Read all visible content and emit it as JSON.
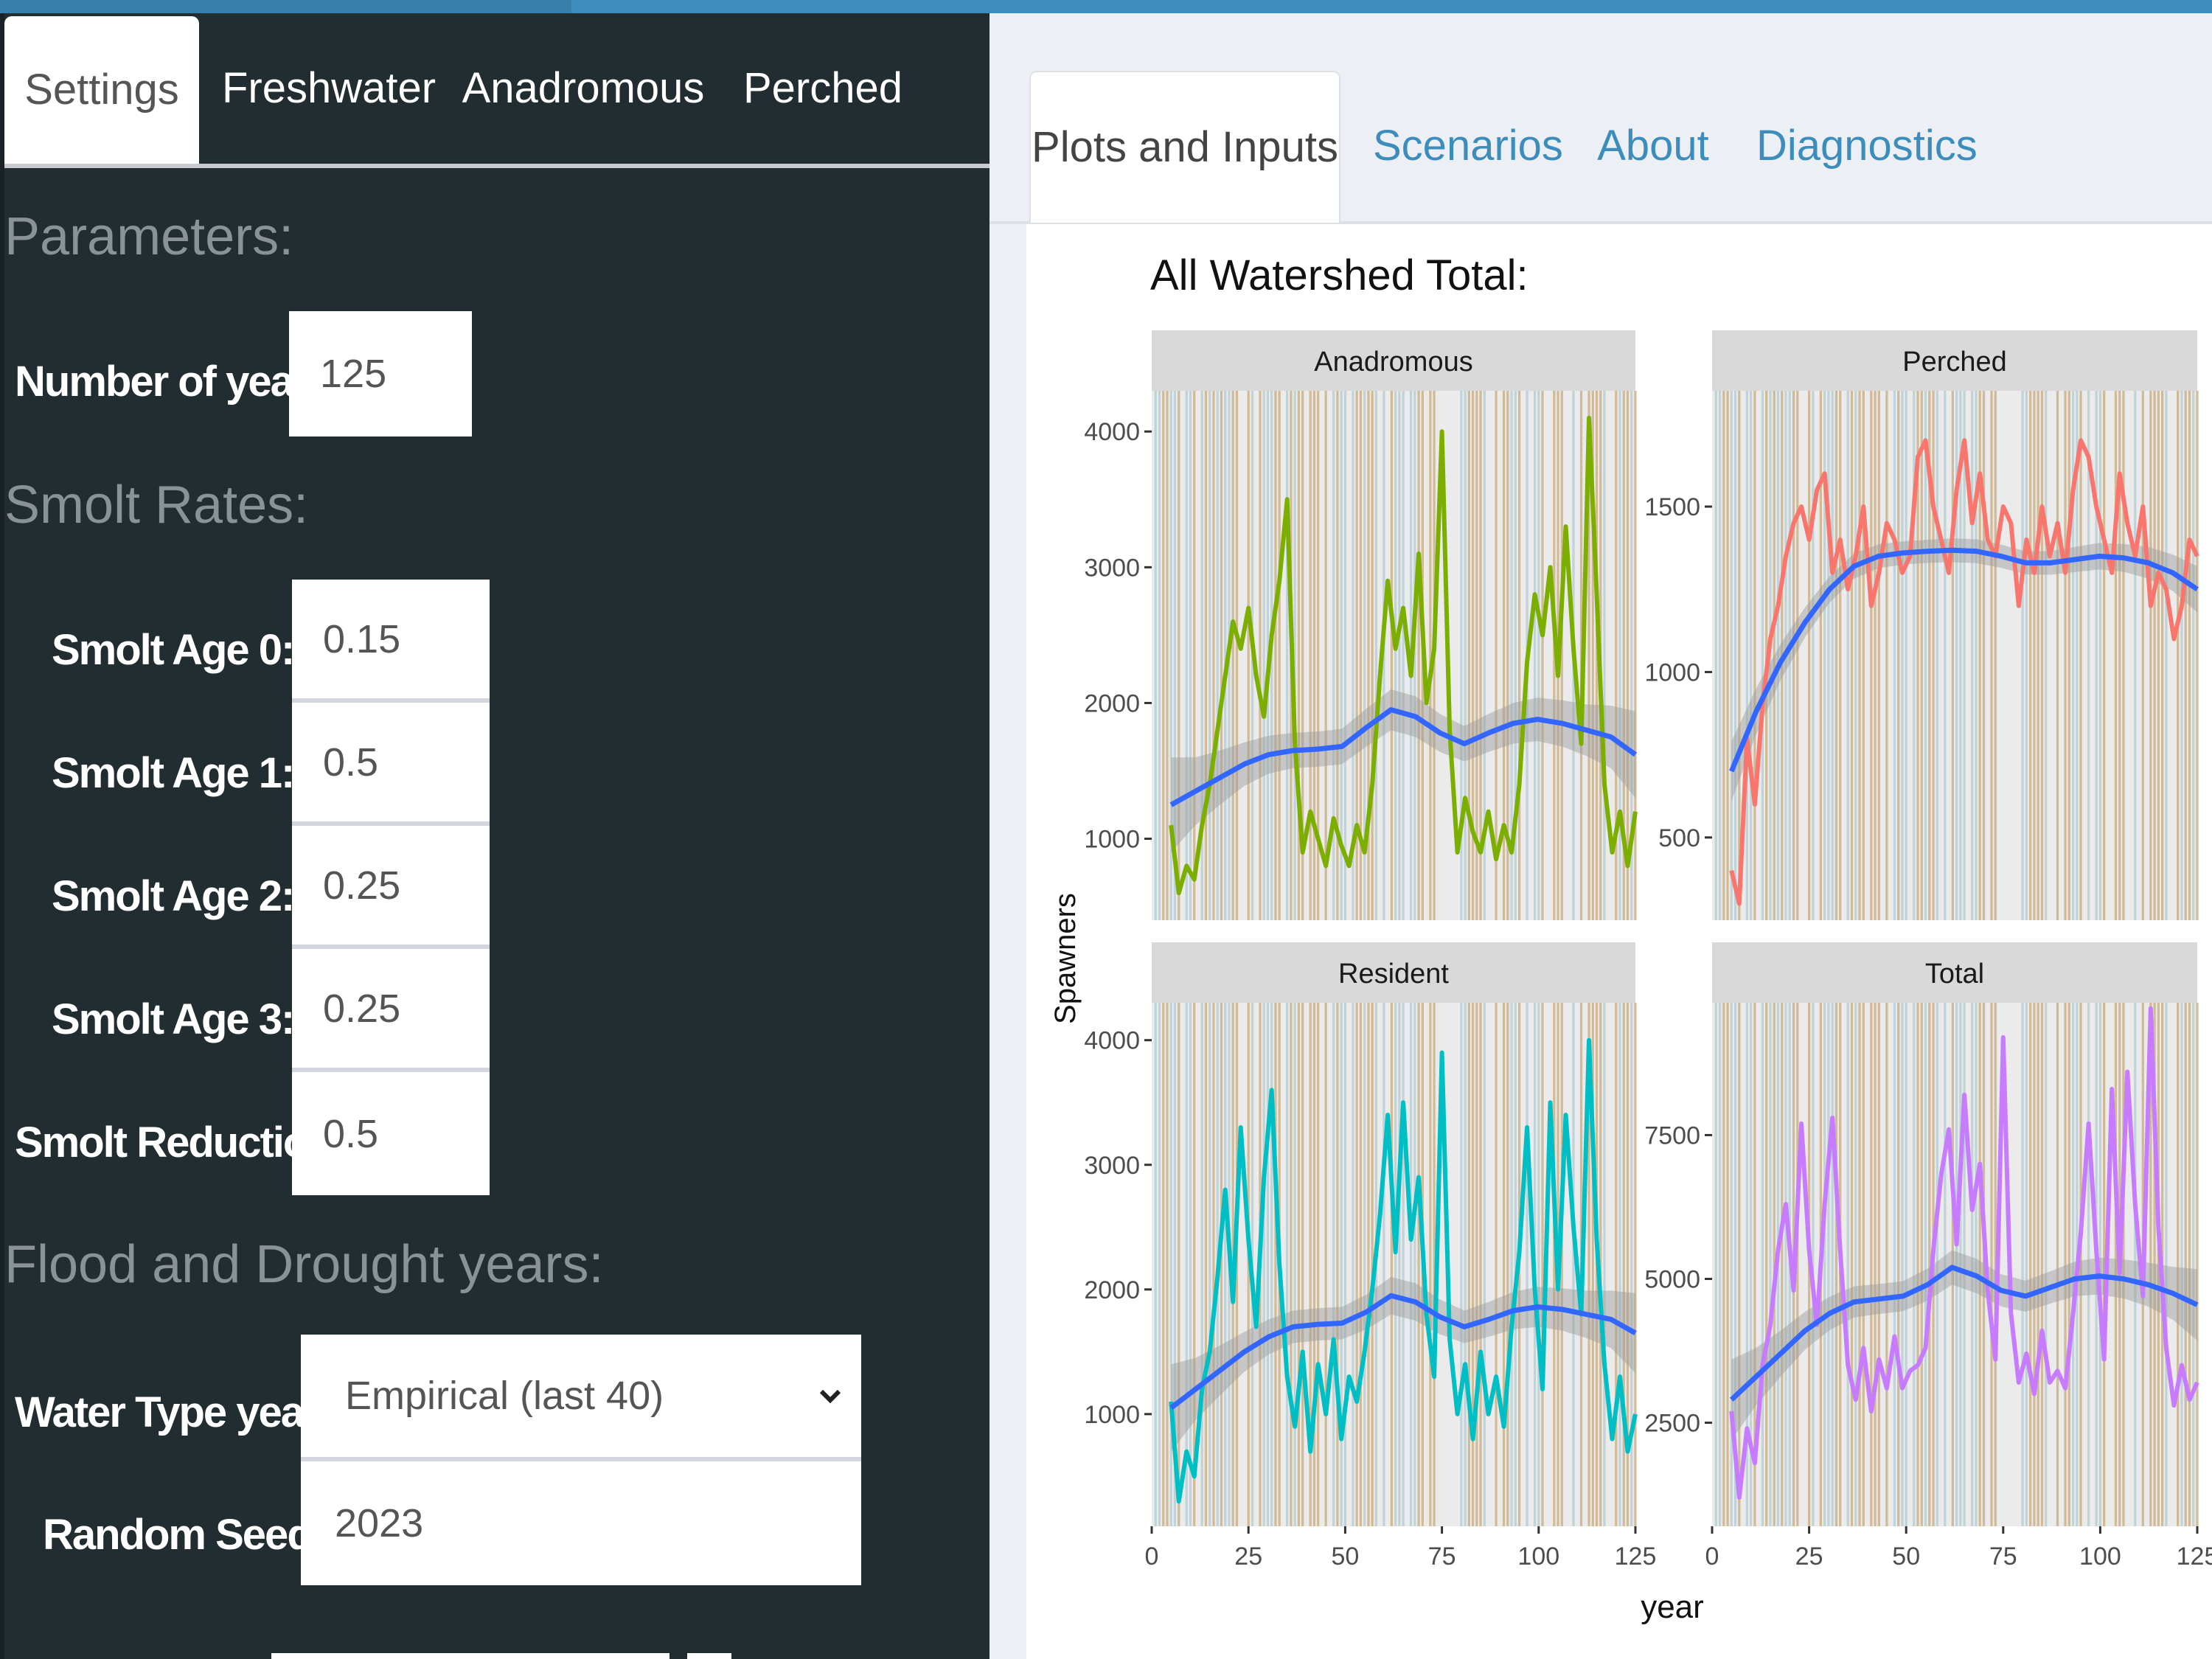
{
  "sidebar": {
    "tabs": [
      {
        "label": "Settings",
        "active": true
      },
      {
        "label": "Freshwater",
        "active": false
      },
      {
        "label": "Anadromous",
        "active": false
      },
      {
        "label": "Perched",
        "active": false
      }
    ],
    "sections": {
      "parameters": "Parameters:",
      "smolt_rates": "Smolt Rates:",
      "flood_drought": "Flood and Drought years:"
    },
    "fields": {
      "num_years": {
        "label": "Number of years:",
        "value": "125"
      },
      "smolt_age0": {
        "label": "Smolt Age 0:",
        "value": "0.15"
      },
      "smolt_age1": {
        "label": "Smolt Age 1:",
        "value": "0.5"
      },
      "smolt_age2": {
        "label": "Smolt Age 2:",
        "value": "0.25"
      },
      "smolt_age3": {
        "label": "Smolt Age 3:",
        "value": "0.25"
      },
      "smolt_reduction": {
        "label": "Smolt Reduction:",
        "value": "0.5"
      },
      "water_type": {
        "label": "Water Type years:",
        "value": "Empirical (last 40)"
      },
      "random_seed": {
        "label": "Random Seed:",
        "value": "2023"
      }
    }
  },
  "main": {
    "tabs": [
      {
        "label": "Plots and Inputs",
        "active": true
      },
      {
        "label": "Scenarios",
        "active": false
      },
      {
        "label": "About",
        "active": false
      },
      {
        "label": "Diagnostics",
        "active": false
      }
    ],
    "plot_title": "All Watershed Total:"
  },
  "chart_data": {
    "type": "line",
    "xlabel": "year",
    "ylabel": "Spawners",
    "x_ticks": [
      0,
      25,
      50,
      75,
      100,
      125
    ],
    "xlim": [
      0,
      125
    ],
    "colors": {
      "smooth": "#3366ff",
      "band": "#999999",
      "flood": "#c8a97a",
      "drought": "#a9c6cf",
      "strip": "#d9d9d9",
      "grid": "#ebebeb"
    },
    "panels": [
      {
        "title": "Anadromous",
        "color": "#7cae00",
        "ylim": [
          400,
          4300
        ],
        "y_ticks": [
          1000,
          2000,
          3000,
          4000
        ],
        "x": [
          5,
          7,
          9,
          11,
          13,
          15,
          17,
          19,
          21,
          23,
          25,
          27,
          29,
          31,
          33,
          35,
          37,
          39,
          41,
          43,
          45,
          47,
          49,
          51,
          53,
          55,
          57,
          59,
          61,
          63,
          65,
          67,
          69,
          71,
          73,
          75,
          77,
          79,
          81,
          83,
          85,
          87,
          89,
          91,
          93,
          95,
          97,
          99,
          101,
          103,
          105,
          107,
          109,
          111,
          113,
          115,
          117,
          119,
          121,
          123,
          125
        ],
        "values": [
          1100,
          600,
          800,
          700,
          1100,
          1400,
          1800,
          2200,
          2600,
          2400,
          2700,
          2200,
          1900,
          2500,
          2900,
          3500,
          1700,
          900,
          1200,
          1000,
          800,
          1150,
          950,
          800,
          1100,
          900,
          1400,
          2200,
          2900,
          2400,
          2700,
          2200,
          3100,
          2000,
          2400,
          4000,
          1800,
          900,
          1300,
          1050,
          900,
          1200,
          850,
          1100,
          900,
          1400,
          2300,
          2800,
          2500,
          3000,
          2200,
          3300,
          2400,
          1700,
          4100,
          2800,
          1400,
          900,
          1200,
          800,
          1200
        ],
        "smooth_y": [
          1250,
          1350,
          1450,
          1550,
          1620,
          1650,
          1660,
          1680,
          1820,
          1950,
          1900,
          1780,
          1700,
          1780,
          1850,
          1880,
          1850,
          1800,
          1750,
          1620
        ],
        "band_halfwidth": [
          350,
          250,
          200,
          160,
          140,
          130,
          130,
          130,
          140,
          150,
          150,
          140,
          130,
          140,
          150,
          160,
          170,
          190,
          230,
          320
        ]
      },
      {
        "title": "Perched",
        "color": "#f8766d",
        "ylim": [
          250,
          1850
        ],
        "y_ticks": [
          500,
          1000,
          1500
        ],
        "x": [
          5,
          7,
          9,
          11,
          13,
          15,
          17,
          19,
          21,
          23,
          25,
          27,
          29,
          31,
          33,
          35,
          37,
          39,
          41,
          43,
          45,
          47,
          49,
          51,
          53,
          55,
          57,
          59,
          61,
          63,
          65,
          67,
          69,
          71,
          73,
          75,
          77,
          79,
          81,
          83,
          85,
          87,
          89,
          91,
          93,
          95,
          97,
          99,
          101,
          103,
          105,
          107,
          109,
          111,
          113,
          115,
          117,
          119,
          121,
          123,
          125
        ],
        "values": [
          400,
          300,
          800,
          600,
          900,
          1100,
          1200,
          1350,
          1450,
          1500,
          1400,
          1550,
          1600,
          1300,
          1400,
          1250,
          1350,
          1500,
          1200,
          1300,
          1450,
          1400,
          1300,
          1350,
          1650,
          1700,
          1500,
          1400,
          1300,
          1550,
          1700,
          1450,
          1600,
          1400,
          1350,
          1500,
          1450,
          1200,
          1400,
          1300,
          1500,
          1350,
          1450,
          1300,
          1550,
          1700,
          1650,
          1500,
          1400,
          1300,
          1600,
          1450,
          1350,
          1500,
          1200,
          1300,
          1250,
          1100,
          1200,
          1400,
          1350
        ],
        "smooth_y": [
          700,
          880,
          1030,
          1150,
          1250,
          1320,
          1350,
          1360,
          1365,
          1368,
          1365,
          1350,
          1330,
          1330,
          1340,
          1350,
          1345,
          1330,
          1300,
          1250
        ],
        "band_halfwidth": [
          90,
          70,
          55,
          45,
          40,
          38,
          36,
          35,
          35,
          36,
          36,
          35,
          35,
          36,
          38,
          40,
          42,
          48,
          55,
          70
        ]
      },
      {
        "title": "Resident",
        "color": "#00bfc4",
        "ylim": [
          100,
          4300
        ],
        "y_ticks": [
          1000,
          2000,
          3000,
          4000
        ],
        "x": [
          5,
          7,
          9,
          11,
          13,
          15,
          17,
          19,
          21,
          23,
          25,
          27,
          29,
          31,
          33,
          35,
          37,
          39,
          41,
          43,
          45,
          47,
          49,
          51,
          53,
          55,
          57,
          59,
          61,
          63,
          65,
          67,
          69,
          71,
          73,
          75,
          77,
          79,
          81,
          83,
          85,
          87,
          89,
          91,
          93,
          95,
          97,
          99,
          101,
          103,
          105,
          107,
          109,
          111,
          113,
          115,
          117,
          119,
          121,
          123,
          125
        ],
        "values": [
          1100,
          300,
          700,
          500,
          1200,
          1500,
          2100,
          2800,
          1900,
          3300,
          2400,
          1700,
          2900,
          3600,
          2200,
          1300,
          900,
          1500,
          700,
          1400,
          1000,
          1600,
          800,
          1300,
          1100,
          1500,
          2000,
          2600,
          3400,
          2300,
          3500,
          2400,
          2900,
          1800,
          1300,
          3900,
          1600,
          1000,
          1400,
          800,
          1500,
          1000,
          1300,
          900,
          1700,
          2300,
          3300,
          2000,
          1200,
          3500,
          2000,
          3400,
          2500,
          1800,
          4000,
          2400,
          1400,
          800,
          1300,
          700,
          1000
        ],
        "smooth_y": [
          1050,
          1200,
          1350,
          1500,
          1620,
          1700,
          1720,
          1730,
          1820,
          1950,
          1900,
          1780,
          1700,
          1760,
          1830,
          1860,
          1840,
          1800,
          1760,
          1650
        ],
        "band_halfwidth": [
          350,
          250,
          200,
          160,
          140,
          130,
          130,
          130,
          140,
          150,
          150,
          140,
          130,
          140,
          150,
          160,
          170,
          190,
          230,
          320
        ]
      },
      {
        "title": "Total",
        "color": "#c77cff",
        "ylim": [
          700,
          9800
        ],
        "y_ticks": [
          2500,
          5000,
          7500
        ],
        "x": [
          5,
          7,
          9,
          11,
          13,
          15,
          17,
          19,
          21,
          23,
          25,
          27,
          29,
          31,
          33,
          35,
          37,
          39,
          41,
          43,
          45,
          47,
          49,
          51,
          53,
          55,
          57,
          59,
          61,
          63,
          65,
          67,
          69,
          71,
          73,
          75,
          77,
          79,
          81,
          83,
          85,
          87,
          89,
          91,
          93,
          95,
          97,
          99,
          101,
          103,
          105,
          107,
          109,
          111,
          113,
          115,
          117,
          119,
          121,
          123,
          125
        ],
        "values": [
          2700,
          1200,
          2400,
          1800,
          3500,
          4200,
          5500,
          6300,
          4800,
          7700,
          5500,
          4200,
          6300,
          7800,
          5500,
          3500,
          2900,
          3800,
          2700,
          3600,
          3100,
          4000,
          3100,
          3400,
          3500,
          3800,
          5500,
          6800,
          7600,
          5600,
          8200,
          6200,
          7000,
          4800,
          3600,
          9200,
          4400,
          3200,
          3700,
          3000,
          4100,
          3200,
          3400,
          3100,
          4400,
          5800,
          7700,
          5500,
          3600,
          8300,
          5100,
          8600,
          6300,
          4700,
          9700,
          5900,
          3800,
          2800,
          3500,
          2900,
          3200
        ],
        "smooth_y": [
          2900,
          3300,
          3700,
          4100,
          4400,
          4600,
          4650,
          4700,
          4900,
          5200,
          5050,
          4800,
          4700,
          4850,
          5000,
          5050,
          5000,
          4900,
          4750,
          4550
        ],
        "band_halfwidth": [
          700,
          500,
          400,
          330,
          290,
          270,
          260,
          260,
          280,
          300,
          300,
          280,
          270,
          280,
          300,
          320,
          340,
          380,
          460,
          620
        ]
      }
    ]
  }
}
